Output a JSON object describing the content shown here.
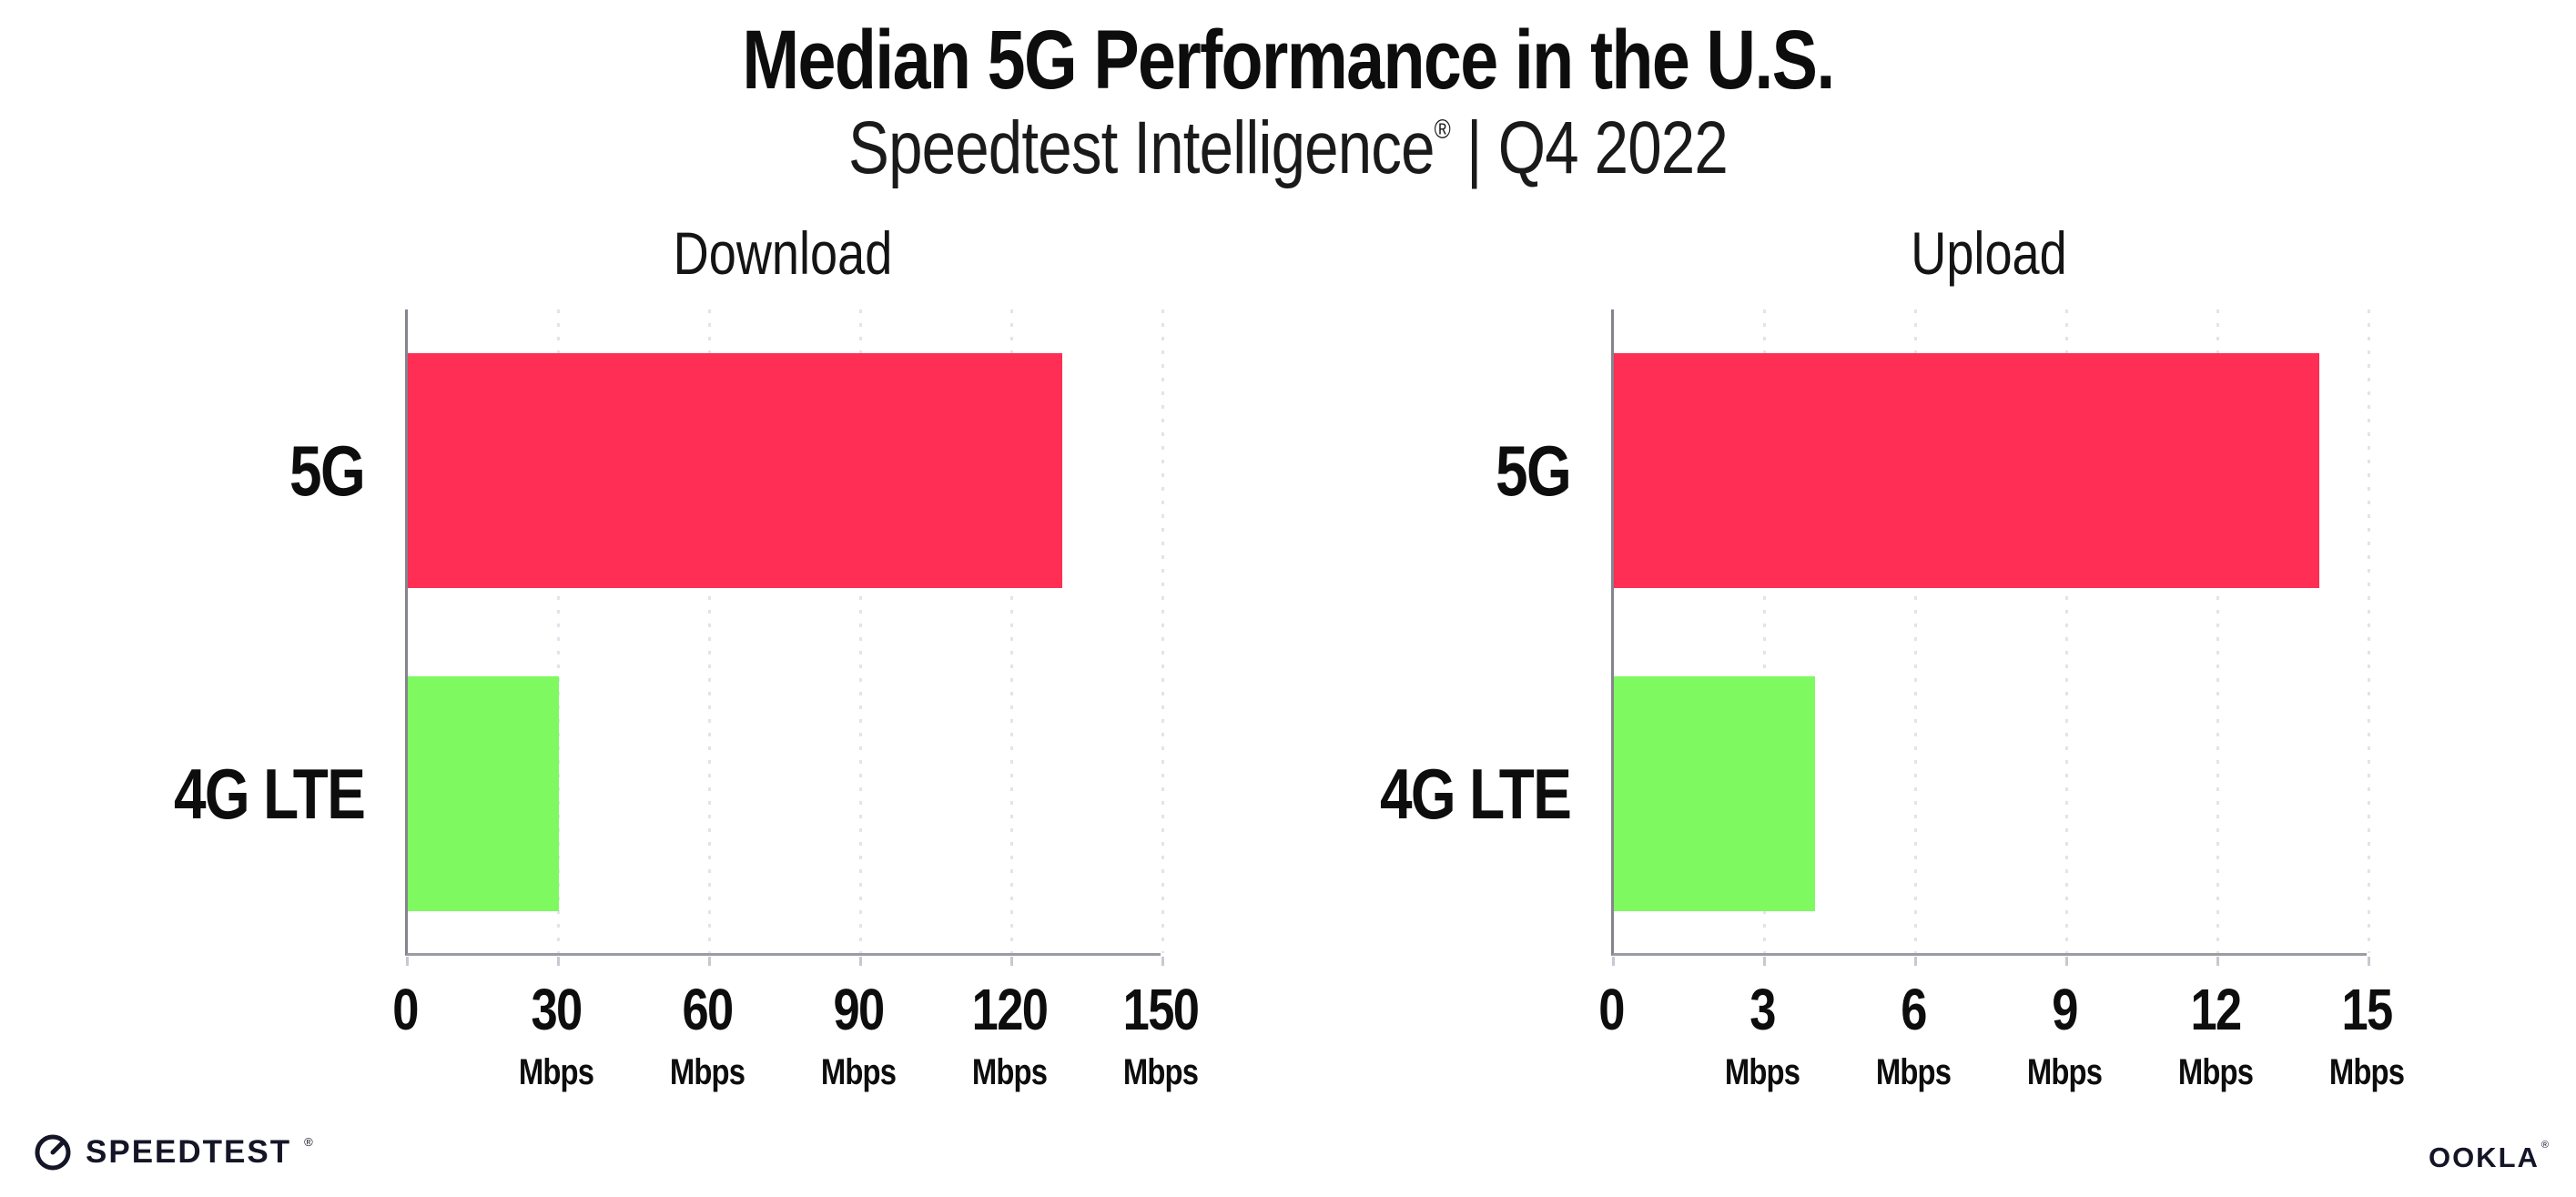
{
  "header": {
    "title": "Median 5G Performance in the U.S.",
    "subtitle": {
      "brand": "Speedtest Intelligence",
      "registered": "®",
      "separator": "|",
      "period": "Q4 2022"
    }
  },
  "chart_data": [
    {
      "type": "bar",
      "orientation": "horizontal",
      "title": "Download",
      "categories": [
        "5G",
        "4G LTE"
      ],
      "values": [
        130,
        30
      ],
      "unit": "Mbps",
      "xlim": [
        0,
        150
      ],
      "xticks": [
        0,
        30,
        60,
        90,
        120,
        150
      ],
      "tick_unit_label": "Mbps",
      "bar_colors": [
        "#FF2E55",
        "#7EFA60"
      ],
      "grid": "dotted-vertical",
      "legend": "none"
    },
    {
      "type": "bar",
      "orientation": "horizontal",
      "title": "Upload",
      "categories": [
        "5G",
        "4G LTE"
      ],
      "values": [
        14,
        4
      ],
      "unit": "Mbps",
      "xlim": [
        0,
        15
      ],
      "xticks": [
        0,
        3,
        6,
        9,
        12,
        15
      ],
      "tick_unit_label": "Mbps",
      "bar_colors": [
        "#FF2E55",
        "#7EFA60"
      ],
      "grid": "dotted-vertical",
      "legend": "none"
    }
  ],
  "footer": {
    "speedtest": {
      "label": "SPEEDTEST",
      "registered": "®"
    },
    "ookla": {
      "label": "OOKLA",
      "registered": "®"
    }
  },
  "colors": {
    "bar_5g": "#FF2E55",
    "bar_4g_lte": "#7EFA60",
    "axis_line": "#9B9BA3",
    "gridline": "#E3E3EB",
    "text": "#0D0D0D",
    "logo_text": "#141526",
    "background": "#FFFFFF"
  }
}
